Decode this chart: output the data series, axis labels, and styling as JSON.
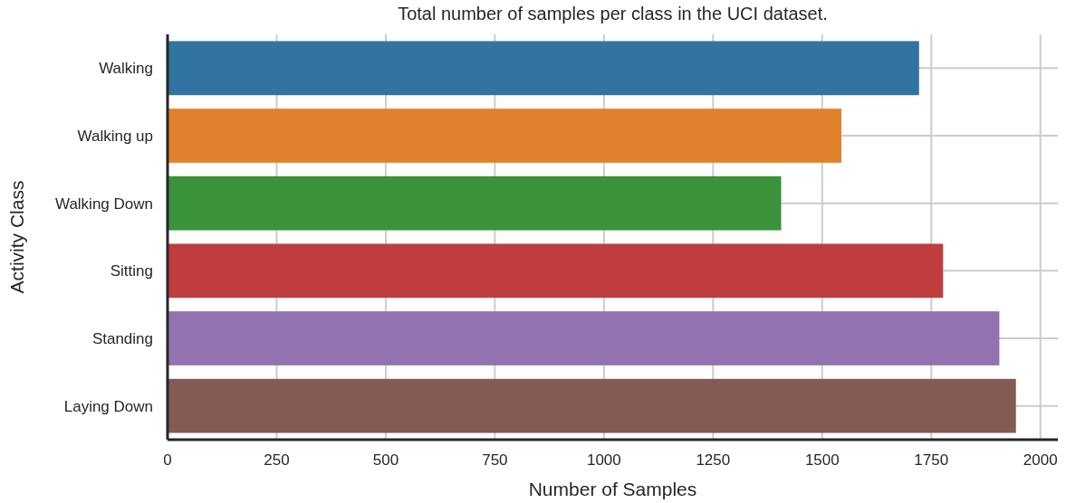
{
  "chart_data": {
    "type": "bar",
    "orientation": "horizontal",
    "title": "Total number of samples per class in the UCI dataset.",
    "xlabel": "Number of Samples",
    "ylabel": "Activity Class",
    "categories": [
      "Walking",
      "Walking up",
      "Walking Down",
      "Sitting",
      "Standing",
      "Laying Down"
    ],
    "values": [
      1722,
      1544,
      1406,
      1777,
      1906,
      1944
    ],
    "colors": [
      "#3274a1",
      "#e1812c",
      "#3a923a",
      "#c03d3e",
      "#9372b2",
      "#845b53"
    ],
    "xlim": [
      0,
      2040
    ],
    "xticks": [
      0,
      250,
      500,
      750,
      1000,
      1250,
      1500,
      1750,
      2000
    ],
    "grid": true
  }
}
